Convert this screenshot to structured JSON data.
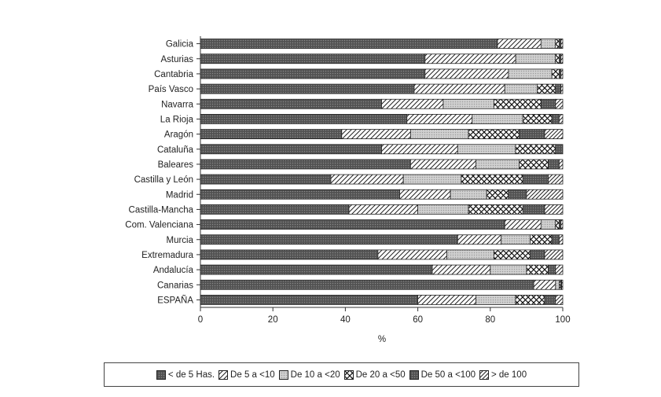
{
  "chart_data": {
    "type": "stacked-bar-horizontal",
    "categories": [
      "Galicia",
      "Asturias",
      "Cantabria",
      "País Vasco",
      "Navarra",
      "La Rioja",
      "Aragón",
      "Cataluña",
      "Baleares",
      "Castilla y León",
      "Madrid",
      "Castilla-Mancha",
      "Com. Valenciana",
      "Murcia",
      "Extremadura",
      "Andalucía",
      "Canarias",
      "ESPAÑA"
    ],
    "series": [
      {
        "name": "< de 5 Has.",
        "pattern": "dark-dots",
        "values": [
          82,
          62,
          62,
          59,
          50,
          57,
          39,
          50,
          58,
          36,
          55,
          41,
          84,
          71,
          49,
          64,
          92,
          60
        ]
      },
      {
        "name": "De 5 a <10",
        "pattern": "diagonal",
        "values": [
          12,
          25,
          23,
          25,
          17,
          18,
          19,
          21,
          18,
          20,
          14,
          19,
          10,
          12,
          19,
          16,
          6,
          16
        ]
      },
      {
        "name": "De 10 a <20",
        "pattern": "light-dots",
        "values": [
          4,
          11,
          12,
          9,
          14,
          14,
          16,
          16,
          12,
          16,
          10,
          14,
          4,
          8,
          13,
          10,
          1,
          11
        ]
      },
      {
        "name": "De 20 a <50",
        "pattern": "cross-hatch",
        "values": [
          1,
          1,
          2,
          5,
          13,
          8,
          14,
          11,
          8,
          17,
          6,
          15,
          1,
          6,
          10,
          6,
          0.5,
          8
        ]
      },
      {
        "name": "De 50 a <100",
        "pattern": "dark-dots",
        "values": [
          0.5,
          0.5,
          0.5,
          1.5,
          4,
          2,
          7,
          2,
          3,
          7,
          5,
          6,
          0.5,
          2,
          4,
          2,
          0.2,
          3
        ]
      },
      {
        "name": "> de 100",
        "pattern": "diagonal-sparse",
        "values": [
          0.5,
          0.5,
          0.5,
          0.5,
          2,
          1,
          5,
          0,
          1,
          4,
          10,
          5,
          0.5,
          1,
          5,
          2,
          0.3,
          2
        ]
      }
    ],
    "x_ticks": [
      "0",
      "20",
      "40",
      "60",
      "80",
      "100"
    ],
    "xlim": [
      0,
      100
    ],
    "xlabel": "%",
    "legend_position": "bottom",
    "grid": false
  }
}
